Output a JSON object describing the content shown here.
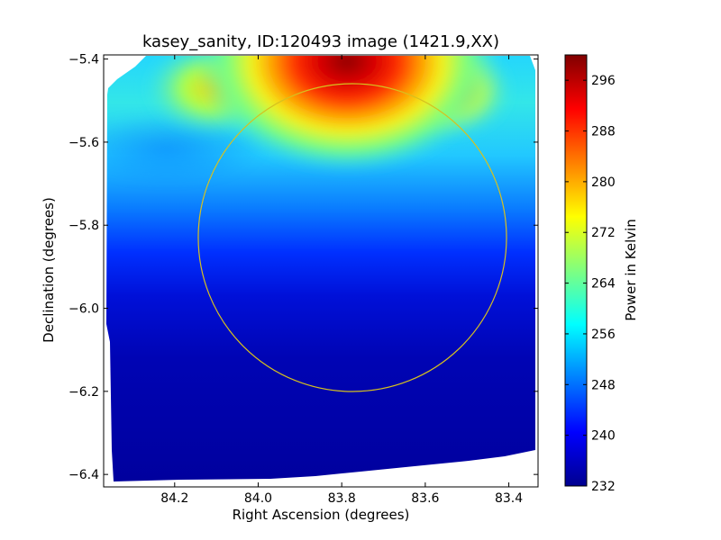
{
  "chart_data": {
    "type": "heatmap",
    "title": "kasey_sanity, ID:120493 image (1421.9,XX)",
    "xlabel": "Right Ascension (degrees)",
    "ylabel": "Declination (degrees)",
    "xlim": [
      84.37,
      83.33
    ],
    "ylim": [
      -6.43,
      -5.39
    ],
    "x_ticks": [
      84.2,
      84.0,
      83.8,
      83.6,
      83.4
    ],
    "x_tick_labels": [
      "84.2",
      "84.0",
      "83.8",
      "83.6",
      "83.4"
    ],
    "y_ticks": [
      -5.4,
      -5.6,
      -5.8,
      -6.0,
      -6.2,
      -6.4
    ],
    "y_tick_labels": [
      "−5.4",
      "−5.6",
      "−5.8",
      "−6.0",
      "−6.2",
      "−6.4"
    ],
    "colormap": "jet",
    "colorbar": {
      "label": "Power in Kelvin",
      "range": [
        232,
        300
      ],
      "ticks": [
        232,
        240,
        248,
        256,
        264,
        272,
        280,
        288,
        296
      ],
      "tick_labels": [
        "232",
        "240",
        "248",
        "256",
        "264",
        "272",
        "280",
        "288",
        "296"
      ]
    },
    "hotspot": {
      "ra": 83.78,
      "dec": -5.42,
      "peak_kelvin": 300
    },
    "circle": {
      "center_ra": 83.77,
      "center_dec": -5.83,
      "radius_deg": 0.37,
      "color": "#d6c11f"
    },
    "grid": false,
    "colors": {
      "background": "#ffffff",
      "frame": "#000000"
    }
  }
}
